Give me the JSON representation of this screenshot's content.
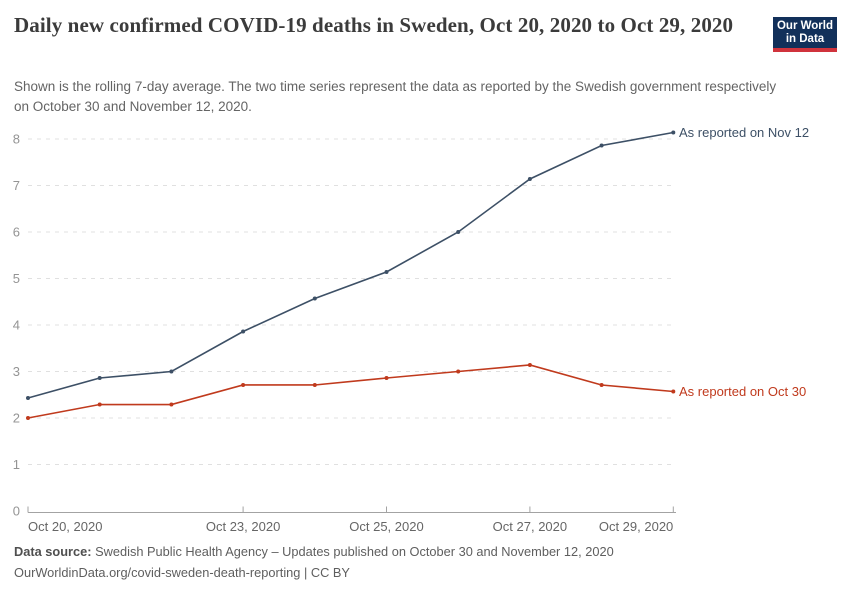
{
  "header": {
    "title": "Daily new confirmed COVID-19 deaths in Sweden, Oct 20, 2020 to Oct 29, 2020",
    "subtitle": "Shown is the rolling 7-day average. The two time series represent the data as reported by the Swedish government respectively on October 30 and November 12, 2020.",
    "logo_line1": "Our World",
    "logo_line2": "in Data",
    "logo_bg_color": "#12305a",
    "logo_accent_color": "#d0333c"
  },
  "chart_data": {
    "type": "line",
    "title": "Daily new confirmed COVID-19 deaths in Sweden, Oct 20, 2020 to Oct 29, 2020",
    "x": [
      "Oct 20, 2020",
      "Oct 21, 2020",
      "Oct 22, 2020",
      "Oct 23, 2020",
      "Oct 24, 2020",
      "Oct 25, 2020",
      "Oct 26, 2020",
      "Oct 27, 2020",
      "Oct 28, 2020",
      "Oct 29, 2020"
    ],
    "series": [
      {
        "name": "As reported on Nov 12",
        "color": "#3d5066",
        "values": [
          2.43,
          2.86,
          3.0,
          3.86,
          4.57,
          5.14,
          6.0,
          7.14,
          7.86,
          8.14
        ]
      },
      {
        "name": "As reported on Oct 30",
        "color": "#c03a1d",
        "values": [
          2.0,
          2.29,
          2.29,
          2.71,
          2.71,
          2.86,
          3.0,
          3.14,
          2.71,
          2.57
        ]
      }
    ],
    "ylim": [
      0,
      8.2
    ],
    "yticks": [
      0,
      1,
      2,
      3,
      4,
      5,
      6,
      7,
      8
    ],
    "xticks": [
      {
        "index": 0,
        "label": "Oct 20, 2020"
      },
      {
        "index": 3,
        "label": "Oct 23, 2020"
      },
      {
        "index": 5,
        "label": "Oct 25, 2020"
      },
      {
        "index": 7,
        "label": "Oct 27, 2020"
      },
      {
        "index": 9,
        "label": "Oct 29, 2020"
      }
    ],
    "grid": "horizontal-dashed",
    "legend_position": "line-end-labels"
  },
  "footer": {
    "data_source_label": "Data source:",
    "data_source_text": " Swedish Public Health Agency – Updates published on October 30 and November 12, 2020",
    "citation": "OurWorldinData.org/covid-sweden-death-reporting | CC BY"
  }
}
